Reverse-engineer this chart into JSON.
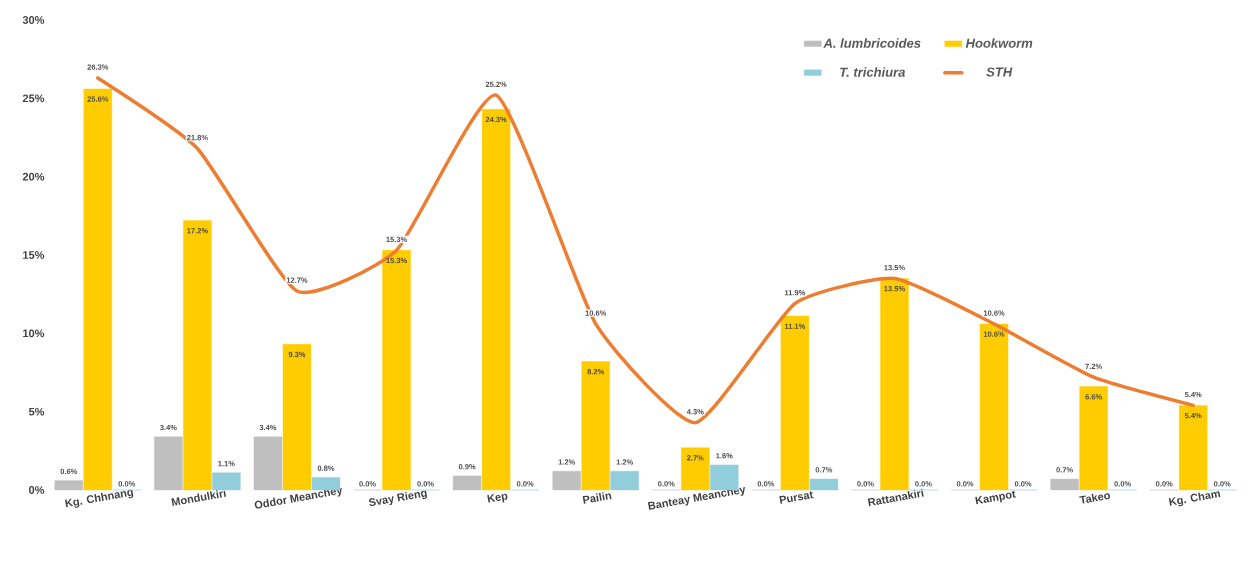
{
  "chart_data": {
    "type": "bar",
    "categories": [
      "Kg. Chhnang",
      "Mondulkiri",
      "Oddor Meanchey",
      "Svay Rieng",
      "Kep",
      "Pailin",
      "Banteay Meanchey",
      "Pursat",
      "Rattanakiri",
      "Kampot",
      "Takeo",
      "Kg. Cham"
    ],
    "ylim": [
      0,
      30
    ],
    "yticks": [
      {
        "value": 0,
        "label": "0%"
      },
      {
        "value": 5,
        "label": "5%"
      },
      {
        "value": 10,
        "label": "10%"
      },
      {
        "value": 15,
        "label": "15%"
      },
      {
        "value": 20,
        "label": "20%"
      },
      {
        "value": 25,
        "label": "25%"
      },
      {
        "value": 30,
        "label": "30%"
      }
    ],
    "legend": "top right",
    "series": [
      {
        "name": "A. lumbricoides",
        "color": "#bfbfbf",
        "values": [
          0.6,
          3.4,
          3.4,
          0.0,
          0.9,
          1.2,
          0.0,
          0.0,
          0.0,
          0.0,
          0.7,
          0.0
        ],
        "value_labels": [
          "0.6%",
          "3.4%",
          "3.4%",
          "0.0%",
          "0.9%",
          "1.2%",
          "0.0%",
          "0.0%",
          "0.0%",
          "0.0%",
          "0.7%",
          "0.0%"
        ]
      },
      {
        "name": "Hookworm",
        "color": "#ffcc00",
        "values": [
          25.6,
          17.2,
          9.3,
          15.3,
          24.3,
          8.2,
          2.7,
          11.1,
          13.5,
          10.6,
          6.6,
          5.4
        ],
        "value_labels": [
          "25.6%",
          "17.2%",
          "9.3%",
          "15.3%",
          "24.3%",
          "8.2%",
          "2.7%",
          "11.1%",
          "13.5%",
          "10.6%",
          "6.6%",
          "5.4%"
        ]
      },
      {
        "name": "T. trichiura",
        "color": "#92cddc",
        "values": [
          0.0,
          1.1,
          0.8,
          0.0,
          0.0,
          1.2,
          1.6,
          0.7,
          0.0,
          0.0,
          0.0,
          0.0
        ],
        "value_labels": [
          "0.0%",
          "1.1%",
          "0.8%",
          "0.0%",
          "0.0%",
          "1.2%",
          "1.6%",
          "0.7%",
          "0.0%",
          "0.0%",
          "0.0%",
          "0.0%"
        ]
      },
      {
        "name": "STH",
        "type": "line",
        "color": "#ed7d31",
        "values": [
          26.3,
          21.8,
          12.7,
          15.3,
          25.2,
          10.6,
          4.3,
          11.9,
          13.5,
          10.6,
          7.2,
          5.4
        ],
        "value_labels": [
          "26.3%",
          "21.8%",
          "12.7%",
          "15.3%",
          "25.2%",
          "10.6%",
          "4.3%",
          "11.9%",
          "13.5%",
          "10.6%",
          "7.2%",
          "5.4%"
        ]
      }
    ]
  }
}
